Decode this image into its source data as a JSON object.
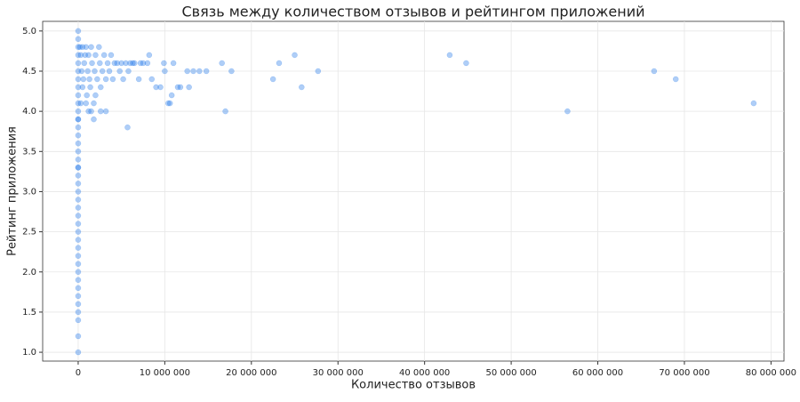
{
  "chart_data": {
    "type": "scatter",
    "title": "Связь между количеством отзывов и рейтингом приложений",
    "x_label": "Количество отзывов",
    "y_label": "Рейтинг приложения",
    "color": "#1a73e8",
    "grid": true,
    "xlim": [
      -4100000,
      81500000
    ],
    "ylim": [
      0.89,
      5.12
    ],
    "xticks": [
      0,
      {
        "value": 10000000,
        "label": "10 000 000"
      },
      {
        "value": 20000000,
        "label": "20 000 000"
      },
      {
        "value": 30000000,
        "label": "30 000 000"
      },
      {
        "value": 40000000,
        "label": "40 000 000"
      },
      {
        "value": 50000000,
        "label": "50 000 000"
      },
      {
        "value": 60000000,
        "label": "60 000 000"
      },
      {
        "value": 70000000,
        "label": "70 000 000"
      },
      {
        "value": 80000000,
        "label": "80 000 000"
      }
    ],
    "yticks": [
      {
        "value": 1,
        "label": "1.0"
      },
      1.5,
      {
        "value": 2,
        "label": "2.0"
      },
      2.5,
      {
        "value": 3,
        "label": "3.0"
      },
      3.5,
      {
        "value": 4,
        "label": "4.0"
      },
      4.5,
      {
        "value": 5,
        "label": "5.0"
      }
    ],
    "x": [
      0,
      0,
      0,
      0,
      0,
      0,
      0,
      0,
      0,
      0,
      0,
      0,
      0,
      0,
      0,
      0,
      0,
      0,
      0,
      0,
      0,
      0,
      0,
      0,
      0,
      0,
      0,
      0,
      0,
      0,
      0,
      0,
      0,
      0,
      0,
      0,
      0,
      0,
      0,
      0,
      0,
      200000,
      500000,
      900000,
      1500000,
      2400000,
      300000,
      800000,
      1200000,
      2000000,
      3000000,
      3800000,
      4200000,
      5000000,
      6000000,
      6500000,
      700000,
      1600000,
      2500000,
      3400000,
      4500000,
      5500000,
      6300000,
      7200000,
      400000,
      1100000,
      1900000,
      2800000,
      3600000,
      4800000,
      5800000,
      600000,
      1300000,
      2200000,
      3200000,
      4000000,
      5200000,
      7000000,
      500000,
      1400000,
      2600000,
      1000000,
      2000000,
      300000,
      900000,
      1800000,
      1200000,
      1500000,
      3200000,
      2600000,
      1800000,
      5700000,
      7500000,
      8000000,
      8200000,
      8500000,
      9000000,
      9500000,
      9900000,
      10000000,
      10400000,
      10600000,
      10800000,
      11000000,
      11500000,
      11800000,
      12600000,
      12800000,
      13300000,
      14000000,
      14800000,
      16600000,
      17700000,
      17000000,
      22500000,
      23200000,
      25000000,
      25800000,
      27700000,
      42900000,
      44800000,
      56500000,
      66500000,
      69000000,
      78000000
    ],
    "y": [
      1.0,
      1.2,
      1.4,
      1.5,
      1.6,
      1.7,
      1.8,
      1.9,
      2.0,
      2.1,
      2.2,
      2.3,
      2.4,
      2.5,
      2.6,
      2.7,
      2.8,
      2.9,
      3.0,
      3.1,
      3.2,
      3.3,
      3.4,
      3.5,
      3.6,
      3.7,
      3.8,
      3.9,
      4.0,
      4.1,
      4.2,
      4.3,
      4.4,
      4.5,
      4.6,
      4.7,
      4.8,
      4.9,
      5.0,
      3.3,
      3.9,
      4.8,
      4.8,
      4.8,
      4.8,
      4.8,
      4.7,
      4.7,
      4.7,
      4.7,
      4.7,
      4.7,
      4.6,
      4.6,
      4.6,
      4.6,
      4.6,
      4.6,
      4.6,
      4.6,
      4.6,
      4.6,
      4.6,
      4.6,
      4.5,
      4.5,
      4.5,
      4.5,
      4.5,
      4.5,
      4.5,
      4.4,
      4.4,
      4.4,
      4.4,
      4.4,
      4.4,
      4.4,
      4.3,
      4.3,
      4.3,
      4.2,
      4.2,
      4.1,
      4.1,
      4.1,
      4.0,
      4.0,
      4.0,
      4.0,
      3.9,
      3.8,
      4.6,
      4.6,
      4.7,
      4.4,
      4.3,
      4.3,
      4.6,
      4.5,
      4.1,
      4.1,
      4.2,
      4.6,
      4.3,
      4.3,
      4.5,
      4.3,
      4.5,
      4.5,
      4.5,
      4.6,
      4.5,
      4.0,
      4.4,
      4.6,
      4.7,
      4.3,
      4.5,
      4.7,
      4.6,
      4.0,
      4.5,
      4.4,
      4.1
    ]
  }
}
